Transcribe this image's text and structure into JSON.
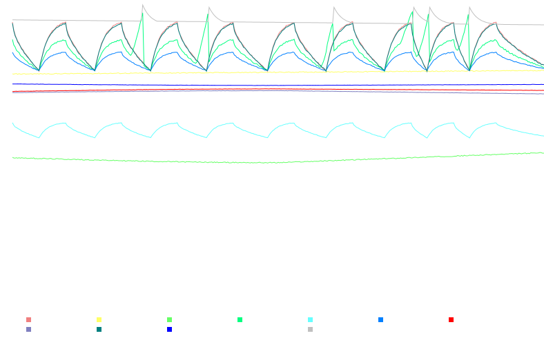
{
  "chart_data": {
    "type": "line",
    "title": "",
    "xlabel": "",
    "ylabel": "",
    "xlim": [
      0,
      100
    ],
    "ylim": [
      0,
      100
    ],
    "grid": false,
    "legend_position": "bottom",
    "legend_labels_visible": false,
    "cycle_starts": [
      5,
      15.5,
      26,
      36.5,
      48,
      59,
      70,
      78,
      86
    ],
    "cycle_length": 5,
    "series": [
      {
        "color": "#f08080",
        "kind": "sawtooth",
        "low": 71.5,
        "high": 91,
        "offset": 0.0,
        "dip": 0.5
      },
      {
        "color": "#ffff66",
        "kind": "baseline",
        "base": 70.2,
        "end": 71.6,
        "noise": 0.35
      },
      {
        "color": "#66ff66",
        "kind": "flat",
        "start": 36.5,
        "mid_dip": 34.5,
        "end": 38.5,
        "noise": 0.35
      },
      {
        "color": "#00ff80",
        "kind": "sawtooth",
        "low": 71.5,
        "high": 84,
        "offset": 0.0,
        "dip": 0.6,
        "spikes": [
          {
            "x": 24.5,
            "high": 97
          },
          {
            "x": 36.8,
            "high": 97
          },
          {
            "x": 60.3,
            "high": 92
          },
          {
            "x": 75.3,
            "high": 97
          },
          {
            "x": 78.3,
            "high": 97
          },
          {
            "x": 85.8,
            "high": 97
          }
        ]
      },
      {
        "color": "#66ffff",
        "kind": "sawtooth",
        "low": 44.5,
        "high": 50.5,
        "offset": 0.0,
        "dip": 0.2
      },
      {
        "color": "#0080ff",
        "kind": "sawtooth",
        "low": 71.5,
        "high": 79,
        "offset": 0.0,
        "dip": 0.3
      },
      {
        "color": "#ff0000",
        "kind": "flat",
        "start": 63.2,
        "mid_dip": 64.2,
        "end": 63.6,
        "noise": 0.08
      },
      {
        "color": "#8080c0",
        "kind": "flat",
        "start": 62.7,
        "mid_dip": 63.5,
        "end": 62.2,
        "noise": 0.1
      },
      {
        "color": "#008080",
        "kind": "sawtooth",
        "low": 71.5,
        "high": 90.5,
        "offset": 0.0,
        "dip": 0.5
      },
      {
        "color": "#0000ff",
        "kind": "flat",
        "start": 66.2,
        "mid_dip": 65.6,
        "end": 66.0,
        "noise": 0.08
      },
      {
        "color": "#c0c0c0",
        "kind": "staircase",
        "start": 92,
        "end": 90,
        "peaks": [
          {
            "x": 24.5,
            "high": 98
          },
          {
            "x": 36.8,
            "high": 98
          },
          {
            "x": 60.3,
            "high": 98
          },
          {
            "x": 75.3,
            "high": 98
          },
          {
            "x": 78.3,
            "high": 98
          },
          {
            "x": 85.8,
            "high": 98
          }
        ]
      }
    ]
  }
}
